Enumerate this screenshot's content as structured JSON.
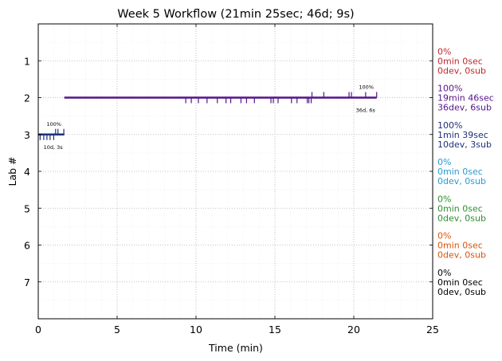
{
  "chart_data": {
    "type": "timeline",
    "title": "Week 5 Workflow (21min 25sec; 46d; 9s)",
    "xlabel": "Time (min)",
    "ylabel": "Lab #",
    "xlim": [
      0,
      25
    ],
    "ylim": [
      8,
      0
    ],
    "x_ticks": [
      0,
      5,
      10,
      15,
      20,
      25
    ],
    "y_ticks": [
      1,
      2,
      3,
      4,
      5,
      6,
      7
    ],
    "grid": true,
    "labs": [
      {
        "lab": 1,
        "color": "#c0282d",
        "percent": "0%",
        "time": "0min 0sec",
        "summary": "0dev, 0sub",
        "segment": null,
        "dev_ticks": [],
        "sub_ticks": [],
        "bar_percent": "",
        "bar_counts": ""
      },
      {
        "lab": 2,
        "color": "#56138a",
        "percent": "100%",
        "time": "19min 46sec",
        "summary": "36dev, 6sub",
        "segment": [
          1.65,
          21.45
        ],
        "dev_ticks": [
          9.35,
          9.7,
          10.15,
          10.7,
          11.35,
          11.9,
          12.2,
          12.85,
          13.2,
          13.7,
          14.75,
          14.9,
          15.2,
          16.05,
          16.4,
          17.05,
          17.15,
          17.3
        ],
        "sub_ticks": [
          17.35,
          18.1,
          19.7,
          19.85,
          20.75,
          21.45
        ],
        "bar_percent": "100%",
        "bar_counts": "36d, 6s"
      },
      {
        "lab": 3,
        "color": "#1f2f7a",
        "percent": "100%",
        "time": "1min 39sec",
        "summary": "10dev, 3sub",
        "segment": [
          0,
          1.65
        ],
        "dev_ticks": [
          0.12,
          0.35,
          0.55,
          0.75,
          0.98
        ],
        "sub_ticks": [
          1.1,
          1.25,
          1.62
        ],
        "bar_percent": "100%",
        "bar_counts": "10d, 3s"
      },
      {
        "lab": 4,
        "color": "#2a9bd1",
        "percent": "0%",
        "time": "0min 0sec",
        "summary": "0dev, 0sub",
        "segment": null,
        "dev_ticks": [],
        "sub_ticks": [],
        "bar_percent": "",
        "bar_counts": ""
      },
      {
        "lab": 5,
        "color": "#2f8f2f",
        "percent": "0%",
        "time": "0min 0sec",
        "summary": "0dev, 0sub",
        "segment": null,
        "dev_ticks": [],
        "sub_ticks": [],
        "bar_percent": "",
        "bar_counts": ""
      },
      {
        "lab": 6,
        "color": "#d9540b",
        "percent": "0%",
        "time": "0min 0sec",
        "summary": "0dev, 0sub",
        "segment": null,
        "dev_ticks": [],
        "sub_ticks": [],
        "bar_percent": "",
        "bar_counts": ""
      },
      {
        "lab": 7,
        "color": "#000000",
        "percent": "0%",
        "time": "0min 0sec",
        "summary": "0dev, 0sub",
        "segment": null,
        "dev_ticks": [],
        "sub_ticks": [],
        "bar_percent": "",
        "bar_counts": ""
      }
    ]
  }
}
